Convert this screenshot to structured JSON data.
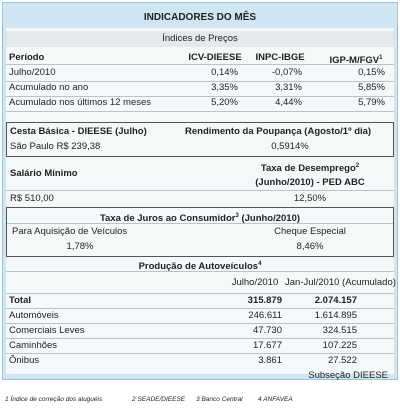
{
  "title": "INDICADORES DO MÊS",
  "prices": {
    "title": "Índices de Preços",
    "header": [
      "Período",
      "ICV-DIEESE",
      "INPC-IBGE",
      {
        "text": "IGP-M/FGV",
        "note": "1"
      }
    ],
    "rows": [
      [
        "Julho/2010",
        "0,14%",
        "-0,07%",
        "0,15%"
      ],
      [
        "Acumulado no ano",
        "3,35%",
        "3,31%",
        "5,85%"
      ],
      [
        "Acumulado nos últimos 12 meses",
        "5,20%",
        "4,44%",
        "5,79%"
      ]
    ]
  },
  "basket": {
    "title": "Cesta Básica - DIEESE (Julho)",
    "value": "São Paulo  R$ 239,38"
  },
  "savings": {
    "title": "Rendimento da Poupança (Agosto/1º dia)",
    "value": "0,5914%"
  },
  "wage": {
    "title": "Salário Mínimo",
    "value": "R$ 510,00"
  },
  "unemployment": {
    "title": "Taxa de Desemprego",
    "note": "2",
    "subtitle": "(Junho/2010) - PED ABC",
    "value": "12,50%"
  },
  "interest": {
    "title": "Taxa de Juros ao Consumidor",
    "note": "3",
    "period": "(Junho/2010)",
    "items": [
      {
        "label": "Para Aquisição de Veículos",
        "value": "1,78%"
      },
      {
        "label": "Cheque Especial",
        "value": "8,46%"
      }
    ]
  },
  "production": {
    "title": "Produção de Autoveículos",
    "note": "4",
    "header": [
      "Julho/2010",
      "Jan-Jul/2010 (Acumulado)"
    ],
    "rows": [
      [
        "Total",
        "315.879",
        "2.074.157"
      ],
      [
        "Automóveis",
        "246.611",
        "1.614.895"
      ],
      [
        "Comerciais Leves",
        "47.730",
        "324.515"
      ],
      [
        "Caminhões",
        "17.677",
        "107.225"
      ],
      [
        "Ônibus",
        "3.861",
        "27.522"
      ]
    ],
    "source": "Subseção DIEESE"
  },
  "footnotes": [
    {
      "mark": "1",
      "text": "Índice de correção dos aluguéis"
    },
    {
      "mark": "2",
      "text": "SEADE/DIEESE"
    },
    {
      "mark": "3",
      "text": "Banco Central"
    },
    {
      "mark": "4",
      "text": "ANFAVEA"
    }
  ]
}
